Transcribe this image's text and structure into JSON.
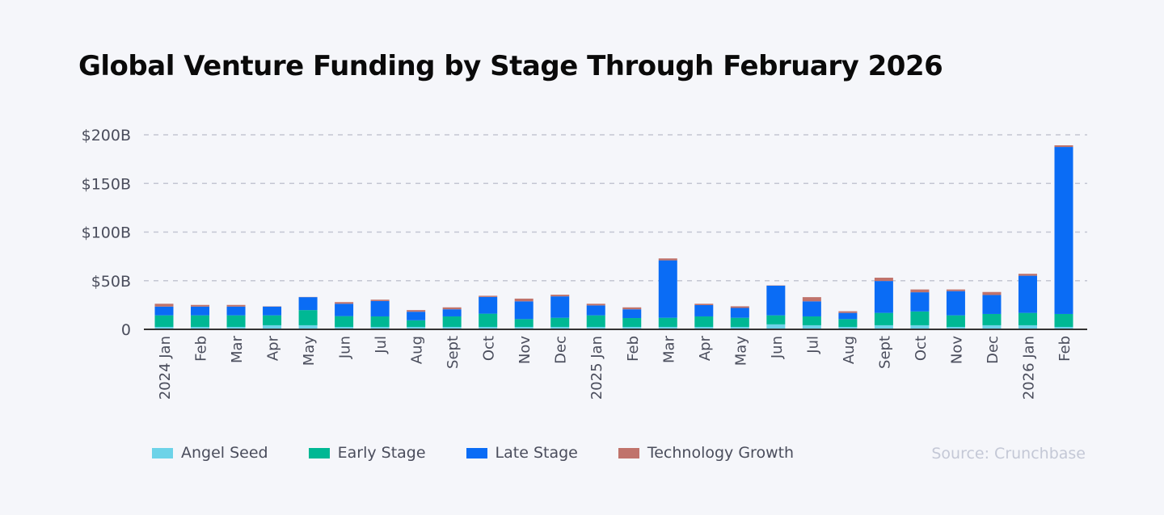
{
  "chart_data": {
    "type": "bar",
    "stacked": true,
    "title": "Global Venture Funding by Stage Through February 2026",
    "source": "Source: Crunchbase",
    "categories": [
      "2024 Jan",
      "Feb",
      "Mar",
      "Apr",
      "May",
      "Jun",
      "Jul",
      "Aug",
      "Sept",
      "Oct",
      "Nov",
      "Dec",
      "2025 Jan",
      "Feb",
      "Mar",
      "Apr",
      "May",
      "Jun",
      "Jul",
      "Aug",
      "Sept",
      "Oct",
      "Nov",
      "Dec",
      "2026 Jan",
      "Feb"
    ],
    "ylim": [
      0,
      200
    ],
    "yticks": [
      0,
      50,
      100,
      150,
      200
    ],
    "ytick_labels": [
      "0",
      "$50B",
      "$100B",
      "$150B",
      "$200B"
    ],
    "grid": "horizontal dashed",
    "legend_position": "bottom-left",
    "series": [
      {
        "name": "Angel Seed",
        "color": "#6dd3e8",
        "values": [
          2.5,
          2.5,
          2.5,
          4.2,
          4.2,
          2.5,
          2.5,
          2.5,
          2.5,
          2.5,
          2.5,
          2.5,
          2.5,
          2.5,
          2.5,
          2.5,
          2.5,
          5.1,
          4.2,
          2.5,
          4.2,
          4.2,
          2.5,
          4.2,
          4.2,
          2.5
        ]
      },
      {
        "name": "Early Stage",
        "color": "#00b894",
        "values": [
          11.9,
          11.9,
          11.9,
          10.2,
          15.6,
          11.1,
          10.8,
          6.8,
          10.8,
          13.6,
          8.0,
          9.4,
          11.9,
          9.1,
          9.4,
          10.8,
          9.4,
          9.3,
          9.1,
          8.0,
          12.7,
          14.2,
          11.9,
          11.6,
          12.7,
          13.3
        ]
      },
      {
        "name": "Late Stage",
        "color": "#0a6cf5",
        "values": [
          9.0,
          9.0,
          9.0,
          9.0,
          13.3,
          12.7,
          15.8,
          8.8,
          7.3,
          17.2,
          18.3,
          22.0,
          10.2,
          9.0,
          59.0,
          11.6,
          10.1,
          30.5,
          15.5,
          6.4,
          32.8,
          19.7,
          24.9,
          19.5,
          38.2,
          171.7
        ]
      },
      {
        "name": "Technology Growth",
        "color": "#c0736b",
        "values": [
          2.9,
          1.7,
          1.7,
          0.3,
          0.2,
          1.7,
          1.4,
          1.7,
          2.0,
          1.2,
          2.8,
          1.7,
          1.7,
          2.0,
          2.0,
          1.4,
          1.7,
          0.3,
          4.3,
          1.7,
          3.4,
          2.9,
          1.7,
          3.1,
          2.0,
          1.7
        ]
      }
    ]
  }
}
